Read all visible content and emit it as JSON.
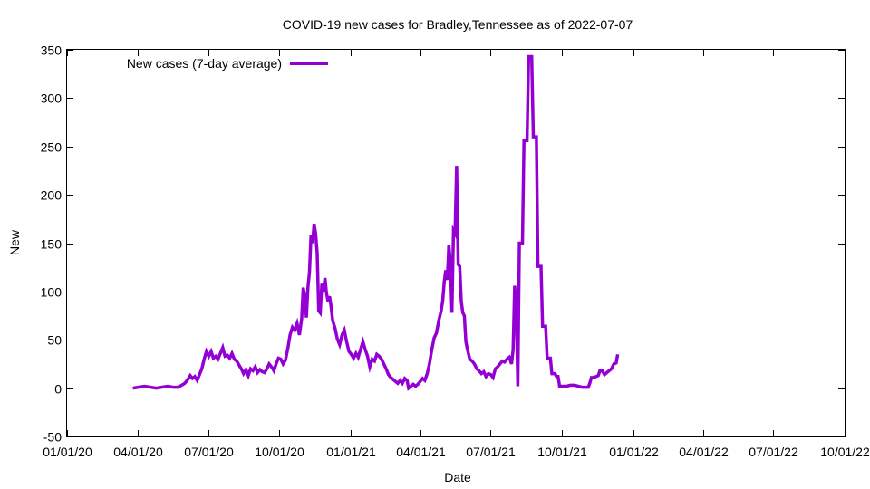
{
  "chart_data": {
    "type": "line",
    "title": "COVID-19 new cases for Bradley,Tennessee as of 2022-07-07",
    "xlabel": "Date",
    "ylabel": "New",
    "ylim": [
      -50,
      350
    ],
    "yticks": [
      -50,
      0,
      50,
      100,
      150,
      200,
      250,
      300,
      350
    ],
    "xlim": [
      "2020-01-01",
      "2022-10-01"
    ],
    "xtick_labels": [
      "01/01/20",
      "04/01/20",
      "07/01/20",
      "10/01/20",
      "01/01/21",
      "04/01/21",
      "07/01/21",
      "10/01/21",
      "01/01/22",
      "04/01/22",
      "07/01/22",
      "10/01/22"
    ],
    "xtick_days": [
      0,
      91,
      182,
      274,
      366,
      456,
      547,
      639,
      731,
      821,
      912,
      1004
    ],
    "x_end_day": 1004,
    "grid": false,
    "legend_position": "top-left",
    "series": [
      {
        "name": "New cases (7-day average)",
        "color": "#9400d3",
        "x_unit": "days since 2020-01-01",
        "points": [
          [
            85,
            0
          ],
          [
            92,
            1
          ],
          [
            100,
            2
          ],
          [
            108,
            1
          ],
          [
            115,
            0
          ],
          [
            122,
            1
          ],
          [
            130,
            2
          ],
          [
            137,
            1
          ],
          [
            143,
            1
          ],
          [
            148,
            3
          ],
          [
            152,
            5
          ],
          [
            156,
            9
          ],
          [
            159,
            13
          ],
          [
            162,
            10
          ],
          [
            165,
            12
          ],
          [
            168,
            8
          ],
          [
            171,
            14
          ],
          [
            174,
            20
          ],
          [
            177,
            30
          ],
          [
            180,
            38
          ],
          [
            183,
            33
          ],
          [
            186,
            38
          ],
          [
            189,
            31
          ],
          [
            192,
            33
          ],
          [
            195,
            30
          ],
          [
            198,
            36
          ],
          [
            201,
            42
          ],
          [
            204,
            33
          ],
          [
            207,
            34
          ],
          [
            210,
            31
          ],
          [
            213,
            36
          ],
          [
            216,
            30
          ],
          [
            219,
            28
          ],
          [
            222,
            24
          ],
          [
            225,
            20
          ],
          [
            228,
            15
          ],
          [
            231,
            19
          ],
          [
            234,
            13
          ],
          [
            237,
            20
          ],
          [
            240,
            18
          ],
          [
            243,
            22
          ],
          [
            246,
            16
          ],
          [
            249,
            19
          ],
          [
            252,
            17
          ],
          [
            255,
            16
          ],
          [
            258,
            20
          ],
          [
            261,
            25
          ],
          [
            264,
            22
          ],
          [
            267,
            18
          ],
          [
            270,
            25
          ],
          [
            273,
            31
          ],
          [
            276,
            30
          ],
          [
            279,
            25
          ],
          [
            282,
            29
          ],
          [
            285,
            41
          ],
          [
            288,
            55
          ],
          [
            291,
            63
          ],
          [
            294,
            60
          ],
          [
            297,
            67
          ],
          [
            300,
            55
          ],
          [
            303,
            72
          ],
          [
            305,
            104
          ],
          [
            307,
            95
          ],
          [
            309,
            73
          ],
          [
            311,
            104
          ],
          [
            313,
            120
          ],
          [
            315,
            158
          ],
          [
            317,
            150
          ],
          [
            319,
            170
          ],
          [
            321,
            160
          ],
          [
            323,
            140
          ],
          [
            325,
            80
          ],
          [
            327,
            78
          ],
          [
            329,
            108
          ],
          [
            331,
            100
          ],
          [
            333,
            114
          ],
          [
            335,
            98
          ],
          [
            337,
            90
          ],
          [
            339,
            95
          ],
          [
            341,
            84
          ],
          [
            343,
            70
          ],
          [
            346,
            62
          ],
          [
            349,
            51
          ],
          [
            352,
            45
          ],
          [
            355,
            55
          ],
          [
            358,
            60
          ],
          [
            361,
            48
          ],
          [
            364,
            38
          ],
          [
            367,
            35
          ],
          [
            370,
            31
          ],
          [
            373,
            36
          ],
          [
            376,
            32
          ],
          [
            379,
            40
          ],
          [
            382,
            48
          ],
          [
            385,
            40
          ],
          [
            388,
            33
          ],
          [
            391,
            22
          ],
          [
            394,
            30
          ],
          [
            397,
            28
          ],
          [
            400,
            35
          ],
          [
            403,
            33
          ],
          [
            406,
            30
          ],
          [
            409,
            25
          ],
          [
            412,
            20
          ],
          [
            415,
            14
          ],
          [
            418,
            11
          ],
          [
            421,
            9
          ],
          [
            424,
            7
          ],
          [
            427,
            5
          ],
          [
            430,
            8
          ],
          [
            433,
            5
          ],
          [
            436,
            10
          ],
          [
            439,
            8
          ],
          [
            441,
            0
          ],
          [
            444,
            2
          ],
          [
            447,
            4
          ],
          [
            450,
            2
          ],
          [
            453,
            4
          ],
          [
            456,
            7
          ],
          [
            459,
            10
          ],
          [
            462,
            8
          ],
          [
            465,
            15
          ],
          [
            468,
            25
          ],
          [
            471,
            40
          ],
          [
            474,
            52
          ],
          [
            477,
            57
          ],
          [
            480,
            70
          ],
          [
            483,
            80
          ],
          [
            485,
            90
          ],
          [
            487,
            110
          ],
          [
            489,
            122
          ],
          [
            491,
            112
          ],
          [
            493,
            148
          ],
          [
            495,
            130
          ],
          [
            497,
            78
          ],
          [
            499,
            163
          ],
          [
            501,
            160
          ],
          [
            503,
            230
          ],
          [
            505,
            128
          ],
          [
            507,
            126
          ],
          [
            509,
            90
          ],
          [
            511,
            78
          ],
          [
            513,
            75
          ],
          [
            515,
            48
          ],
          [
            517,
            40
          ],
          [
            520,
            30
          ],
          [
            523,
            28
          ],
          [
            526,
            25
          ],
          [
            529,
            20
          ],
          [
            532,
            18
          ],
          [
            535,
            15
          ],
          [
            538,
            17
          ],
          [
            541,
            12
          ],
          [
            544,
            15
          ],
          [
            547,
            14
          ],
          [
            550,
            11
          ],
          [
            553,
            20
          ],
          [
            556,
            22
          ],
          [
            559,
            25
          ],
          [
            562,
            28
          ],
          [
            565,
            27
          ],
          [
            568,
            30
          ],
          [
            571,
            32
          ],
          [
            574,
            25
          ],
          [
            576,
            40
          ],
          [
            578,
            106
          ],
          [
            580,
            80
          ],
          [
            582,
            2
          ],
          [
            584,
            150
          ],
          [
            586,
            150
          ],
          [
            588,
            150
          ],
          [
            590,
            256
          ],
          [
            592,
            256
          ],
          [
            594,
            256
          ],
          [
            596,
            343
          ],
          [
            598,
            343
          ],
          [
            600,
            343
          ],
          [
            602,
            260
          ],
          [
            604,
            260
          ],
          [
            606,
            260
          ],
          [
            608,
            126
          ],
          [
            610,
            126
          ],
          [
            612,
            126
          ],
          [
            614,
            64
          ],
          [
            616,
            64
          ],
          [
            618,
            64
          ],
          [
            620,
            31
          ],
          [
            622,
            31
          ],
          [
            624,
            31
          ],
          [
            626,
            15
          ],
          [
            628,
            15
          ],
          [
            630,
            15
          ],
          [
            632,
            12
          ],
          [
            634,
            12
          ],
          [
            636,
            2
          ],
          [
            640,
            2
          ],
          [
            645,
            2
          ],
          [
            650,
            3
          ],
          [
            655,
            3
          ],
          [
            660,
            2
          ],
          [
            665,
            1
          ],
          [
            670,
            1
          ],
          [
            673,
            1
          ],
          [
            675,
            5
          ],
          [
            677,
            11
          ],
          [
            680,
            11
          ],
          [
            683,
            12
          ],
          [
            686,
            13
          ],
          [
            688,
            18
          ],
          [
            691,
            18
          ],
          [
            694,
            14
          ],
          [
            697,
            16
          ],
          [
            700,
            18
          ],
          [
            703,
            20
          ],
          [
            706,
            25
          ],
          [
            709,
            26
          ],
          [
            711,
            35
          ]
        ]
      }
    ]
  }
}
